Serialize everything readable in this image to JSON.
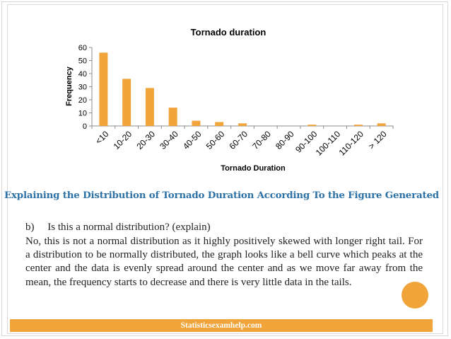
{
  "chart_data": {
    "type": "bar",
    "title": "Tornado duration",
    "xlabel": "Tornado Duration",
    "ylabel": "Frequency",
    "ylim": [
      0,
      60
    ],
    "yticks": [
      0,
      10,
      20,
      30,
      40,
      50,
      60
    ],
    "grid": false,
    "categories": [
      "<10",
      "10-20",
      "20-30",
      "30-40",
      "40-50",
      "50-60",
      "60-70",
      "70-80",
      "80-90",
      "90-100",
      "100-110",
      "110-120",
      "> 120"
    ],
    "values": [
      56,
      36,
      29,
      14,
      4,
      3,
      2,
      0,
      0,
      1,
      0,
      1,
      2
    ],
    "bar_color": "#f0a43a"
  },
  "heading": "Explaining the Distribution of Tornado Duration According To the Figure Generated",
  "question": "b)     Is this a normal distribution? (explain)",
  "answer": "No, this is not a normal distribution as it highly positively skewed with longer right tail. For a distribution to be normally distributed, the graph looks like a bell curve which peaks at the center and the data is evenly spread around the center and as we move far away from the mean, the frequency starts to decrease and there is very little data in the tails.",
  "footer": "Statisticsexamhelp.com",
  "colors": {
    "accent": "#f0a43a",
    "heading": "#2e72a6"
  }
}
